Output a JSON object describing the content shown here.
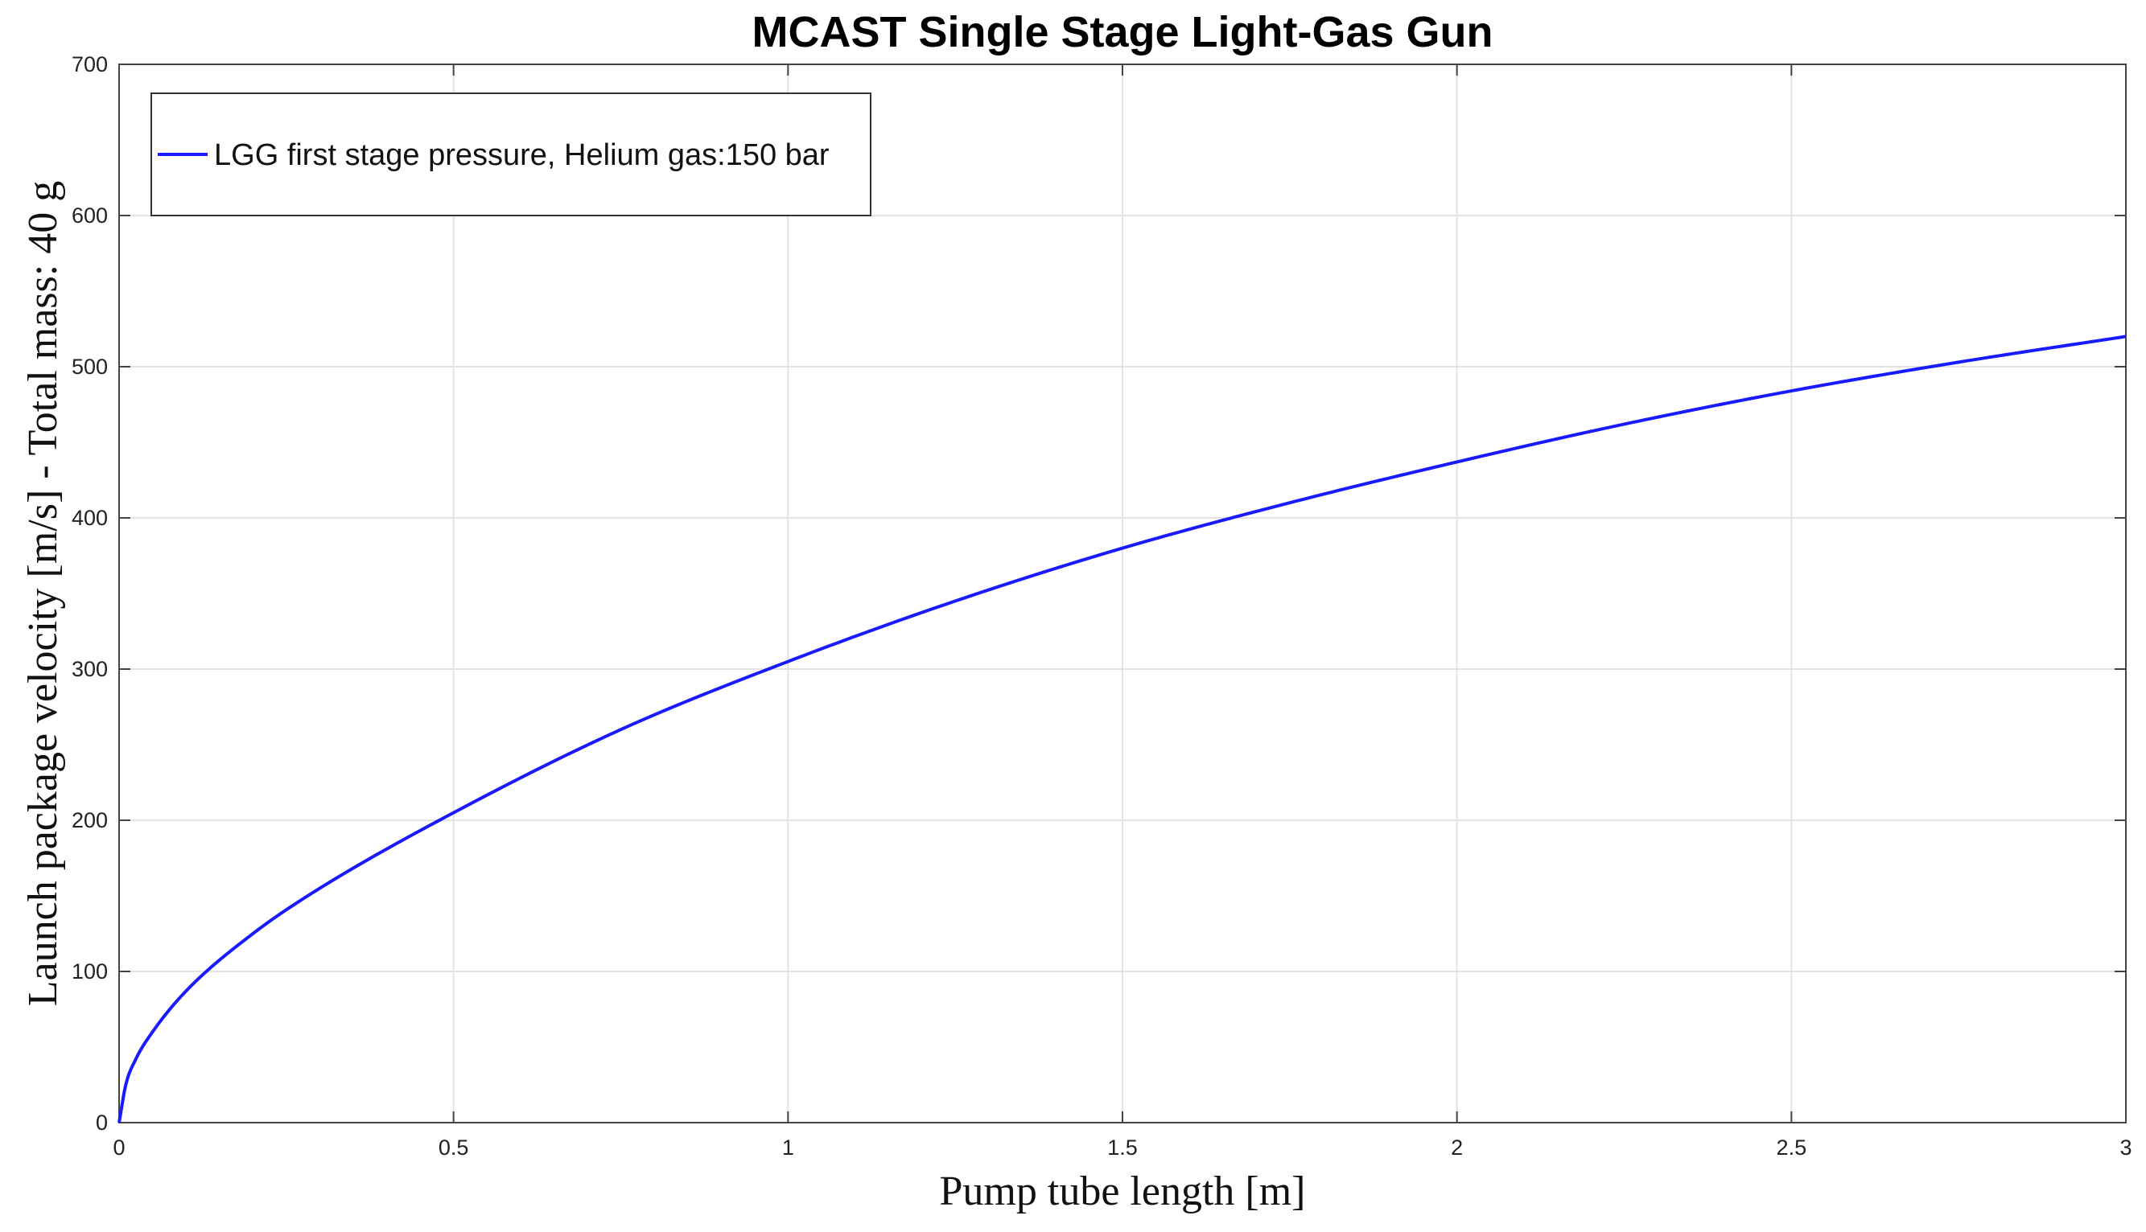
{
  "chart_data": {
    "type": "line",
    "title": "MCAST Single Stage Light-Gas Gun",
    "xlabel": "Pump tube length [m]",
    "ylabel": "Launch package velocity [m/s] - Total mass: 40 g",
    "xlim": [
      0,
      3
    ],
    "ylim": [
      0,
      700
    ],
    "x_ticks": [
      "0",
      "0.5",
      "1",
      "1.5",
      "2",
      "2.5",
      "3"
    ],
    "y_ticks": [
      "0",
      "100",
      "200",
      "300",
      "400",
      "500",
      "600",
      "700"
    ],
    "grid": true,
    "legend_position": "top-left",
    "series": [
      {
        "name": "LGG first stage pressure, Helium gas:150 bar",
        "color": "#1a1aff",
        "x": [
          0,
          0.01,
          0.025,
          0.05,
          0.1,
          0.2,
          0.3,
          0.5,
          0.75,
          1.0,
          1.25,
          1.5,
          1.75,
          2.0,
          2.25,
          2.5,
          2.75,
          3.0
        ],
        "y": [
          0,
          25,
          42,
          60,
          87,
          125,
          155,
          205,
          260,
          305,
          345,
          380,
          410,
          437,
          462,
          484,
          503,
          520
        ]
      }
    ]
  }
}
